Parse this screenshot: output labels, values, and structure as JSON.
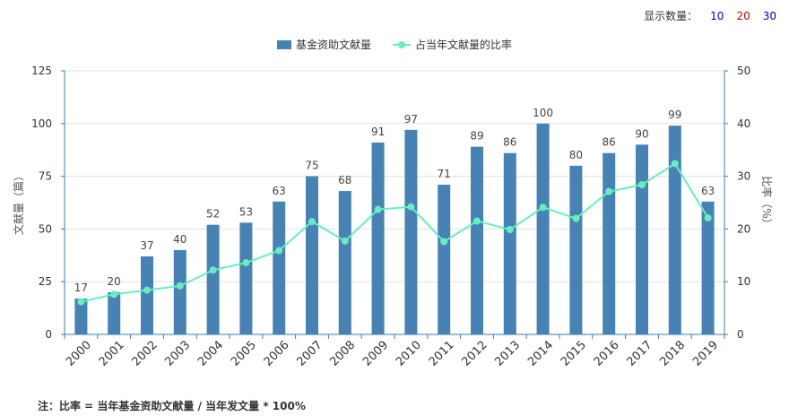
{
  "display_count": {
    "label": "显示数量：",
    "options": [
      "10",
      "20",
      "30"
    ]
  },
  "note": "注：比率 = 当年基金资助文献量 / 当年发文量 * 100%",
  "chart_data": {
    "type": "bar",
    "categories": [
      "2000",
      "2001",
      "2002",
      "2003",
      "2004",
      "2005",
      "2006",
      "2007",
      "2008",
      "2009",
      "2010",
      "2011",
      "2012",
      "2013",
      "2014",
      "2015",
      "2016",
      "2017",
      "2018",
      "2019"
    ],
    "series": [
      {
        "name": "基金资助文献量",
        "type": "bar",
        "axis": "left",
        "color": "#4682B4",
        "values": [
          17,
          20,
          37,
          40,
          52,
          53,
          63,
          75,
          68,
          91,
          97,
          71,
          89,
          86,
          100,
          80,
          86,
          90,
          99,
          63
        ]
      },
      {
        "name": "占当年文献量的比率",
        "type": "line",
        "axis": "right",
        "color": "#66EEC0",
        "values": [
          6.2,
          7.6,
          8.4,
          9.2,
          12.2,
          13.6,
          15.9,
          21.4,
          17.7,
          23.7,
          24.2,
          17.6,
          21.5,
          19.9,
          24.1,
          22.0,
          27.1,
          28.4,
          32.4,
          22.1
        ]
      }
    ],
    "ylabel": "文献量（篇）",
    "ylabel_right": "比率（%）",
    "ylim": [
      0,
      125
    ],
    "ylim_right": [
      0,
      50
    ],
    "yticks": [
      0,
      25,
      50,
      75,
      100,
      125
    ],
    "yticks_right": [
      0,
      10,
      20,
      30,
      40,
      50
    ],
    "grid": true,
    "legend": "top-center"
  }
}
